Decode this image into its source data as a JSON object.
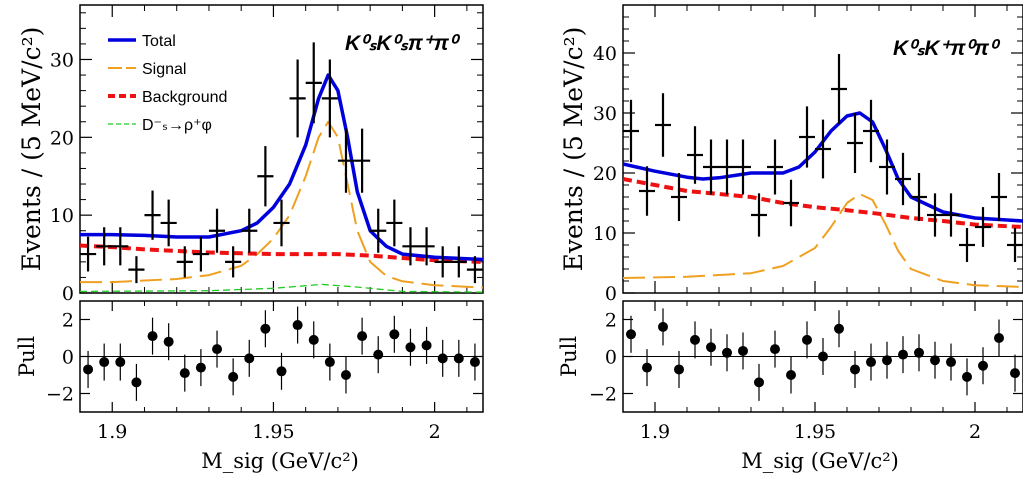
{
  "colors": {
    "total": "#0000dd",
    "signal": "#f0a020",
    "background": "#ee1111",
    "peaking": "#22cc22"
  },
  "chart_data": [
    {
      "type": "line",
      "channel_label": "K⁰ₛK⁰ₛπ⁺π⁰",
      "ylabel": "Events / (5 MeV/c²)",
      "xlabel": "M_sig (GeV/c²)",
      "pull_label": "Pull",
      "xlim": [
        1.89,
        2.015
      ],
      "ylim": [
        0,
        37
      ],
      "pull_ylim": [
        -3,
        3
      ],
      "xticks": [
        {
          "v": 1.9,
          "label": "1.9"
        },
        {
          "v": 1.95,
          "label": "1.95"
        },
        {
          "v": 2.0,
          "label": "2"
        }
      ],
      "yticks": [
        {
          "v": 0,
          "label": "0"
        },
        {
          "v": 10,
          "label": "10"
        },
        {
          "v": 20,
          "label": "20"
        },
        {
          "v": 30,
          "label": "30"
        }
      ],
      "pull_ticks": [
        {
          "v": 2,
          "label": "2"
        },
        {
          "v": 0,
          "label": "0"
        },
        {
          "v": -2,
          "label": "−2"
        }
      ],
      "legend": [
        {
          "key": "total",
          "label": "Total"
        },
        {
          "key": "signal",
          "label": "Signal"
        },
        {
          "key": "background",
          "label": "Background"
        },
        {
          "key": "peaking",
          "label": "D⁻ₛ→ρ⁺φ"
        }
      ],
      "data": {
        "x": [
          1.8925,
          1.8975,
          1.9025,
          1.9075,
          1.9125,
          1.9175,
          1.9225,
          1.9275,
          1.9325,
          1.9375,
          1.9425,
          1.9475,
          1.9525,
          1.9575,
          1.9625,
          1.9675,
          1.9725,
          1.9775,
          1.9825,
          1.9875,
          1.9925,
          1.9975,
          2.0025,
          2.0075,
          2.0125
        ],
        "y": [
          5,
          6,
          6,
          3,
          10,
          9,
          4,
          5,
          8,
          4,
          8,
          15,
          9,
          25,
          27,
          25,
          17,
          17,
          8,
          9,
          6,
          6,
          4,
          4,
          3
        ]
      },
      "pull": [
        -0.7,
        -0.3,
        -0.3,
        -1.4,
        1.1,
        0.8,
        -0.9,
        -0.6,
        0.4,
        -1.1,
        -0.1,
        1.5,
        -0.8,
        1.7,
        0.9,
        -0.3,
        -1.0,
        1.1,
        0.1,
        1.2,
        0.5,
        0.6,
        -0.1,
        -0.1,
        -0.3
      ],
      "curves": {
        "total": [
          [
            1.89,
            7.5
          ],
          [
            1.9,
            7.5
          ],
          [
            1.91,
            7.4
          ],
          [
            1.92,
            7.2
          ],
          [
            1.93,
            7.2
          ],
          [
            1.94,
            8.0
          ],
          [
            1.945,
            9.0
          ],
          [
            1.95,
            11.0
          ],
          [
            1.955,
            14.0
          ],
          [
            1.96,
            19.0
          ],
          [
            1.964,
            25.0
          ],
          [
            1.967,
            28.0
          ],
          [
            1.97,
            26.0
          ],
          [
            1.973,
            20.0
          ],
          [
            1.976,
            13.0
          ],
          [
            1.98,
            8.0
          ],
          [
            1.985,
            6.0
          ],
          [
            1.99,
            5.0
          ],
          [
            2.0,
            4.6
          ],
          [
            2.015,
            4.3
          ]
        ],
        "signal": [
          [
            1.89,
            1.4
          ],
          [
            1.9,
            1.4
          ],
          [
            1.91,
            1.6
          ],
          [
            1.92,
            1.8
          ],
          [
            1.93,
            2.3
          ],
          [
            1.94,
            3.5
          ],
          [
            1.945,
            5.0
          ],
          [
            1.95,
            7.0
          ],
          [
            1.955,
            10.0
          ],
          [
            1.96,
            15.0
          ],
          [
            1.964,
            20.0
          ],
          [
            1.967,
            22.0
          ],
          [
            1.97,
            20.0
          ],
          [
            1.973,
            14.0
          ],
          [
            1.976,
            8.0
          ],
          [
            1.98,
            4.0
          ],
          [
            1.985,
            2.2
          ],
          [
            1.99,
            1.5
          ],
          [
            2.0,
            1.0
          ],
          [
            2.015,
            0.7
          ]
        ],
        "background": [
          [
            1.89,
            6.1
          ],
          [
            1.9,
            5.9
          ],
          [
            1.91,
            5.6
          ],
          [
            1.92,
            5.4
          ],
          [
            1.93,
            5.2
          ],
          [
            1.94,
            5.1
          ],
          [
            1.95,
            5.0
          ],
          [
            1.96,
            5.0
          ],
          [
            1.97,
            5.0
          ],
          [
            1.98,
            4.8
          ],
          [
            1.99,
            4.5
          ],
          [
            2.0,
            4.2
          ],
          [
            2.015,
            4.0
          ]
        ],
        "peaking": [
          [
            1.89,
            0.2
          ],
          [
            1.93,
            0.3
          ],
          [
            1.95,
            0.6
          ],
          [
            1.965,
            1.1
          ],
          [
            1.975,
            0.8
          ],
          [
            1.99,
            0.2
          ],
          [
            2.015,
            0.1
          ]
        ]
      }
    },
    {
      "type": "line",
      "channel_label": "K⁰ₛK⁺π⁰π⁰",
      "ylabel": "Events / (5 MeV/c²)",
      "xlabel": "M_sig (GeV/c²)",
      "pull_label": "Pull",
      "xlim": [
        1.89,
        2.015
      ],
      "ylim": [
        0,
        48
      ],
      "pull_ylim": [
        -3,
        3
      ],
      "xticks": [
        {
          "v": 1.9,
          "label": "1.9"
        },
        {
          "v": 1.95,
          "label": "1.95"
        },
        {
          "v": 2.0,
          "label": "2"
        }
      ],
      "yticks": [
        {
          "v": 0,
          "label": "0"
        },
        {
          "v": 10,
          "label": "10"
        },
        {
          "v": 20,
          "label": "20"
        },
        {
          "v": 30,
          "label": "30"
        },
        {
          "v": 40,
          "label": "40"
        }
      ],
      "pull_ticks": [
        {
          "v": 2,
          "label": "2"
        },
        {
          "v": 0,
          "label": "0"
        },
        {
          "v": -2,
          "label": "−2"
        }
      ],
      "legend": [],
      "data": {
        "x": [
          1.8925,
          1.8975,
          1.9025,
          1.9075,
          1.9125,
          1.9175,
          1.9225,
          1.9275,
          1.9325,
          1.9375,
          1.9425,
          1.9475,
          1.9525,
          1.9575,
          1.9625,
          1.9675,
          1.9725,
          1.9775,
          1.9825,
          1.9875,
          1.9925,
          1.9975,
          2.0025,
          2.0075,
          2.0125
        ],
        "y": [
          27,
          17,
          28,
          16,
          23,
          21,
          21,
          21,
          13,
          21,
          15,
          26,
          24,
          34,
          25,
          27,
          21,
          19,
          16,
          13,
          13,
          8,
          11,
          16,
          8
        ]
      },
      "pull": [
        1.2,
        -0.6,
        1.6,
        -0.7,
        0.9,
        0.5,
        0.2,
        0.3,
        -1.4,
        0.4,
        -1.0,
        0.9,
        0.0,
        1.5,
        -0.7,
        -0.3,
        -0.2,
        0.1,
        0.2,
        -0.2,
        -0.3,
        -1.1,
        -0.5,
        1.0,
        -0.9
      ],
      "curves": {
        "total": [
          [
            1.89,
            21.5
          ],
          [
            1.9,
            20.3
          ],
          [
            1.91,
            19.3
          ],
          [
            1.915,
            19.0
          ],
          [
            1.92,
            19.2
          ],
          [
            1.93,
            20.0
          ],
          [
            1.94,
            20.0
          ],
          [
            1.945,
            21.0
          ],
          [
            1.95,
            23.5
          ],
          [
            1.955,
            27.0
          ],
          [
            1.96,
            29.5
          ],
          [
            1.964,
            30.0
          ],
          [
            1.968,
            28.5
          ],
          [
            1.972,
            24.0
          ],
          [
            1.976,
            19.0
          ],
          [
            1.98,
            16.0
          ],
          [
            1.99,
            13.5
          ],
          [
            2.0,
            12.5
          ],
          [
            2.015,
            12.0
          ]
        ],
        "signal": [
          [
            1.89,
            2.5
          ],
          [
            1.91,
            2.7
          ],
          [
            1.93,
            3.3
          ],
          [
            1.94,
            4.5
          ],
          [
            1.95,
            7.5
          ],
          [
            1.955,
            11.0
          ],
          [
            1.96,
            15.0
          ],
          [
            1.964,
            16.5
          ],
          [
            1.968,
            15.5
          ],
          [
            1.972,
            11.5
          ],
          [
            1.976,
            7.0
          ],
          [
            1.98,
            4.0
          ],
          [
            1.99,
            2.0
          ],
          [
            2.0,
            1.3
          ],
          [
            2.015,
            1.0
          ]
        ],
        "background": [
          [
            1.89,
            19.0
          ],
          [
            1.9,
            18.0
          ],
          [
            1.91,
            17.0
          ],
          [
            1.92,
            16.5
          ],
          [
            1.93,
            16.0
          ],
          [
            1.94,
            15.0
          ],
          [
            1.95,
            14.3
          ],
          [
            1.96,
            13.8
          ],
          [
            1.97,
            13.2
          ],
          [
            1.98,
            12.5
          ],
          [
            1.99,
            12.0
          ],
          [
            2.0,
            11.4
          ],
          [
            2.015,
            11.0
          ]
        ]
      }
    }
  ]
}
